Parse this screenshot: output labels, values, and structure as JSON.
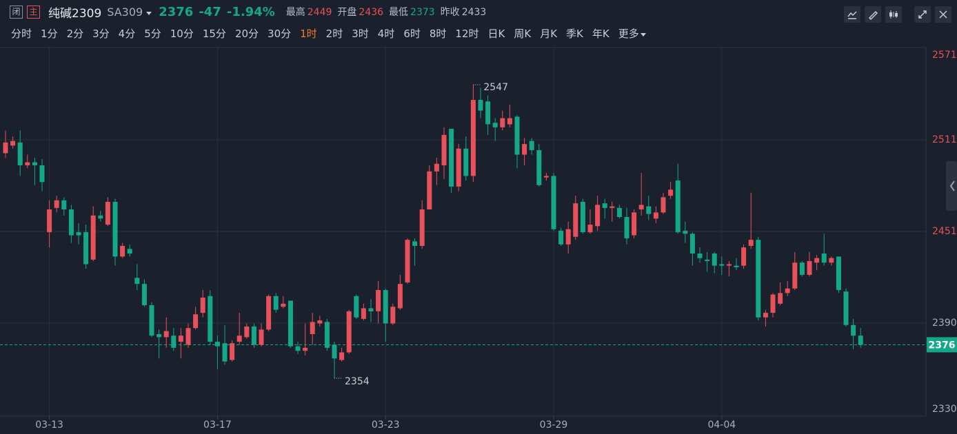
{
  "header": {
    "status": "闭",
    "mode": "主",
    "name": "纯碱2309",
    "code": "SA309",
    "price": "2376",
    "change": "-47",
    "change_pct": "-1.94%",
    "stats": [
      {
        "label": "最高",
        "value": "2449",
        "color": "#e8505b"
      },
      {
        "label": "开盘",
        "value": "2436",
        "color": "#e8505b"
      },
      {
        "label": "最低",
        "value": "2373",
        "color": "#14a889"
      },
      {
        "label": "昨收",
        "value": "2433",
        "color": "#b8bcc6"
      }
    ]
  },
  "intervals": [
    "分时",
    "1分",
    "2分",
    "3分",
    "4分",
    "5分",
    "10分",
    "15分",
    "20分",
    "30分",
    "1时",
    "2时",
    "3时",
    "4时",
    "6时",
    "8时",
    "12时",
    "日K",
    "周K",
    "月K",
    "季K",
    "年K",
    "更多"
  ],
  "active_interval": 10,
  "chart_data": {
    "type": "candlestick",
    "categories": [
      null,
      null,
      null,
      null,
      null,
      null,
      "03-13",
      null,
      null,
      null,
      null,
      null,
      null,
      null,
      null,
      null,
      null,
      null,
      null,
      null,
      null,
      null,
      null,
      null,
      null,
      null,
      null,
      null,
      null,
      "03-17",
      null,
      null,
      null,
      null,
      null,
      null,
      null,
      null,
      null,
      null,
      null,
      null,
      null,
      null,
      null,
      null,
      null,
      null,
      null,
      null,
      null,
      null,
      "03-23",
      null,
      null,
      null,
      null,
      null,
      null,
      null,
      null,
      null,
      null,
      null,
      null,
      null,
      null,
      null,
      null,
      null,
      null,
      null,
      null,
      null,
      null,
      "03-29",
      null,
      null,
      null,
      null,
      null,
      null,
      null,
      null,
      null,
      null,
      null,
      null,
      null,
      null,
      null,
      null,
      null,
      null,
      null,
      null,
      null,
      null,
      "04-04",
      null,
      null,
      null,
      null,
      null,
      null,
      null,
      null,
      null,
      null,
      null,
      null,
      null,
      null,
      null,
      null,
      null,
      null,
      null
    ],
    "open": [
      2502,
      2507,
      2509,
      2494,
      2496,
      2494,
      2450,
      2466,
      2471,
      2465,
      2450,
      2450,
      2432,
      2461,
      2455,
      2470,
      2434,
      2439,
      2420,
      2416,
      2402,
      2383,
      2381,
      2382,
      2378,
      2376,
      2387,
      2397,
      2408,
      2378,
      2377,
      2366,
      2378,
      2381,
      2388,
      2376,
      2386,
      2408,
      2401,
      2405,
      2375,
      2372,
      2383,
      2390,
      2391,
      2376,
      2366,
      2371,
      2408,
      2393,
      2400,
      2398,
      2412,
      2390,
      2400,
      2417,
      2444,
      2441,
      2465,
      2490,
      2494,
      2518,
      2480,
      2505,
      2487,
      2537,
      2536,
      2522,
      2519,
      2521,
      2526,
      2501,
      2510,
      2504,
      2486,
      2487,
      2451,
      2442,
      2447,
      2470,
      2450,
      2454,
      2469,
      2466,
      2466,
      2460,
      2448,
      2465,
      2467,
      2459,
      2463,
      2474,
      2484,
      2451,
      2449,
      2436,
      2432,
      2436,
      2429,
      2428,
      2428,
      2428,
      2441,
      2445,
      2394,
      2397,
      2403,
      2410,
      2413,
      2430,
      2422,
      2430,
      2436,
      2430,
      2434,
      2411,
      2389,
      2382
    ],
    "high": [
      2517,
      2513,
      2517,
      2501,
      2499,
      2498,
      2471,
      2474,
      2473,
      2468,
      2456,
      2455,
      2467,
      2464,
      2473,
      2472,
      2443,
      2442,
      2429,
      2419,
      2404,
      2386,
      2394,
      2387,
      2387,
      2390,
      2401,
      2412,
      2412,
      2382,
      2389,
      2379,
      2397,
      2390,
      2390,
      2390,
      2409,
      2410,
      2408,
      2405,
      2378,
      2390,
      2397,
      2395,
      2393,
      2378,
      2374,
      2399,
      2409,
      2403,
      2406,
      2418,
      2413,
      2403,
      2422,
      2446,
      2446,
      2471,
      2494,
      2499,
      2519,
      2518,
      2508,
      2513,
      2547,
      2545,
      2540,
      2525,
      2530,
      2534,
      2527,
      2512,
      2512,
      2508,
      2489,
      2489,
      2453,
      2457,
      2474,
      2472,
      2465,
      2474,
      2472,
      2470,
      2468,
      2466,
      2465,
      2489,
      2474,
      2467,
      2476,
      2483,
      2495,
      2457,
      2450,
      2440,
      2437,
      2437,
      2434,
      2431,
      2433,
      2442,
      2476,
      2447,
      2399,
      2410,
      2417,
      2418,
      2437,
      2431,
      2437,
      2435,
      2449,
      2434,
      2434,
      2413,
      2393,
      2387
    ],
    "low": [
      2499,
      2505,
      2487,
      2492,
      2481,
      2477,
      2440,
      2463,
      2461,
      2443,
      2442,
      2426,
      2431,
      2457,
      2454,
      2428,
      2433,
      2434,
      2412,
      2401,
      2381,
      2367,
      2374,
      2372,
      2367,
      2374,
      2386,
      2394,
      2376,
      2360,
      2363,
      2365,
      2376,
      2380,
      2374,
      2375,
      2385,
      2397,
      2400,
      2374,
      2370,
      2369,
      2376,
      2388,
      2372,
      2354,
      2365,
      2370,
      2393,
      2392,
      2391,
      2390,
      2378,
      2389,
      2399,
      2416,
      2428,
      2439,
      2465,
      2481,
      2485,
      2476,
      2477,
      2484,
      2483,
      2525,
      2514,
      2510,
      2517,
      2519,
      2492,
      2494,
      2501,
      2480,
      2484,
      2451,
      2441,
      2436,
      2445,
      2449,
      2449,
      2451,
      2459,
      2457,
      2459,
      2442,
      2446,
      2461,
      2458,
      2456,
      2462,
      2472,
      2449,
      2443,
      2428,
      2430,
      2424,
      2423,
      2422,
      2421,
      2425,
      2426,
      2439,
      2392,
      2388,
      2394,
      2402,
      2408,
      2412,
      2421,
      2421,
      2425,
      2428,
      2428,
      2410,
      2388,
      2373,
      2374
    ],
    "close": [
      2509,
      2510,
      2494,
      2496,
      2494,
      2483,
      2465,
      2471,
      2465,
      2448,
      2448,
      2429,
      2461,
      2459,
      2470,
      2434,
      2441,
      2436,
      2416,
      2402,
      2382,
      2381,
      2385,
      2374,
      2382,
      2387,
      2396,
      2407,
      2378,
      2375,
      2365,
      2377,
      2382,
      2388,
      2376,
      2386,
      2408,
      2399,
      2403,
      2375,
      2372,
      2374,
      2391,
      2392,
      2374,
      2367,
      2371,
      2398,
      2394,
      2400,
      2398,
      2412,
      2390,
      2401,
      2416,
      2445,
      2441,
      2465,
      2490,
      2495,
      2514,
      2480,
      2505,
      2487,
      2537,
      2530,
      2521,
      2519,
      2525,
      2525,
      2501,
      2508,
      2504,
      2481,
      2487,
      2452,
      2442,
      2452,
      2469,
      2450,
      2455,
      2468,
      2466,
      2467,
      2460,
      2446,
      2463,
      2468,
      2462,
      2463,
      2473,
      2478,
      2450,
      2449,
      2436,
      2433,
      2431,
      2428,
      2428,
      2429,
      2427,
      2440,
      2445,
      2394,
      2397,
      2409,
      2410,
      2413,
      2430,
      2422,
      2431,
      2433,
      2430,
      2433,
      2412,
      2389,
      2382,
      2376
    ],
    "ylim": [
      2330,
      2571
    ],
    "yticks": [
      2571,
      {
        "value": 2510.75,
        "label": "2511"
      },
      {
        "value": 2450.5,
        "label": "2451"
      },
      {
        "value": 2390.25,
        "label": "2390"
      },
      2330
    ],
    "grid": true,
    "up_color": "#e8505b",
    "down_color": "#14a889",
    "last_price": 2376,
    "high_marker": 2547,
    "low_marker": 2354
  }
}
